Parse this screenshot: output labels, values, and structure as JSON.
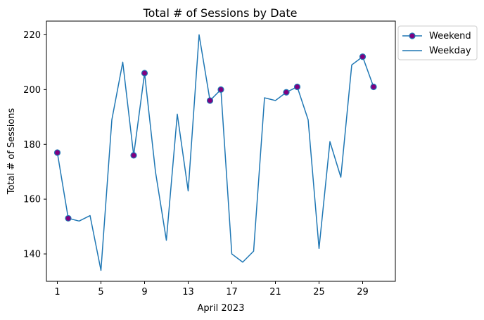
{
  "chart_data": {
    "type": "line",
    "title": "Total # of Sessions by Date",
    "xlabel": "April 2023",
    "ylabel": "Total # of Sessions",
    "xlim": [
      0,
      32
    ],
    "ylim": [
      130,
      225
    ],
    "xticks": [
      1,
      5,
      9,
      13,
      17,
      21,
      25,
      29
    ],
    "yticks": [
      140,
      160,
      180,
      200,
      220
    ],
    "grid": false,
    "legend_position": "outside-right-top",
    "colors": {
      "line": "#1f77b4",
      "marker_face": "#800080",
      "marker_edge": "#1f77b4"
    },
    "series": [
      {
        "name": "Weekday",
        "x": [
          1,
          2,
          3,
          4,
          5,
          6,
          7,
          8,
          9,
          10,
          11,
          12,
          13,
          14,
          15,
          16,
          17,
          18,
          19,
          20,
          21,
          22,
          23,
          24,
          25,
          26,
          27,
          28,
          29,
          30
        ],
        "y": [
          177,
          153,
          152,
          154,
          134,
          189,
          210,
          176,
          206,
          170,
          145,
          191,
          163,
          220,
          196,
          200,
          140,
          137,
          141,
          197,
          196,
          199,
          201,
          189,
          142,
          181,
          168,
          209,
          212,
          201
        ]
      },
      {
        "name": "Weekend",
        "x": [
          1,
          2,
          8,
          9,
          15,
          16,
          22,
          23,
          29,
          30
        ],
        "y": [
          177,
          153,
          176,
          206,
          196,
          200,
          199,
          201,
          212,
          201
        ]
      }
    ]
  }
}
